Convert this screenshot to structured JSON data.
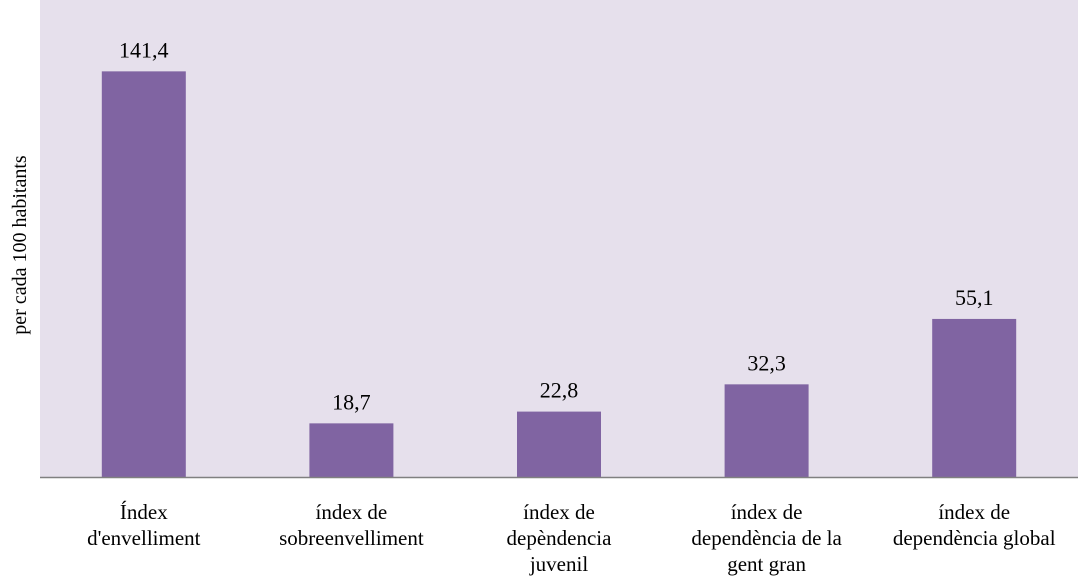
{
  "chart_data": {
    "type": "bar",
    "title": "",
    "xlabel": "",
    "ylabel": "per cada 100 habitants",
    "categories": [
      "Índex d'envelliment",
      "índex de sobreenvelliment",
      "índex de depèndencia juvenil",
      "índex de dependència de la gent gran",
      "índex de dependència global"
    ],
    "category_lines": [
      [
        "Índex",
        "d'envelliment"
      ],
      [
        "índex de",
        "sobreenvelliment"
      ],
      [
        "índex de",
        "depèndencia",
        "juvenil"
      ],
      [
        "índex de",
        "dependència de la",
        "gent gran"
      ],
      [
        "índex de",
        "dependència global"
      ]
    ],
    "values": [
      141.4,
      18.7,
      22.8,
      32.3,
      55.1
    ],
    "value_labels": [
      "141,4",
      "18,7",
      "22,8",
      "32,3",
      "55,1"
    ],
    "ylim": [
      0,
      160
    ],
    "grid": false,
    "legend": "none",
    "colors": {
      "bar": "#8064a2",
      "plot_background": "#e6e0ec",
      "axis": "#808080"
    }
  }
}
